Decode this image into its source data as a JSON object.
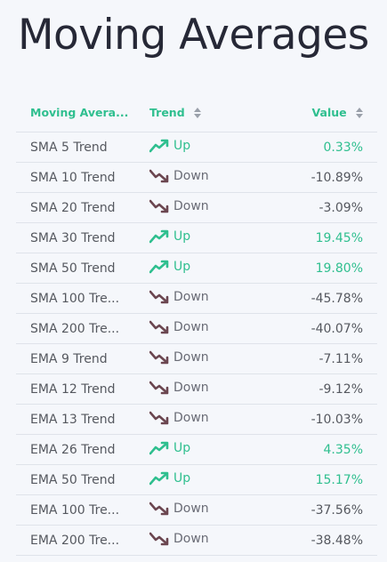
{
  "title": "Moving Averages",
  "header": {
    "col_name": "Moving Avera...",
    "col_trend": "Trend",
    "col_value": "Value"
  },
  "colors": {
    "up": "#2fbf8f",
    "down_icon": "#6b4650",
    "header": "#2fbf8f"
  },
  "icons": {
    "up": "trend-up-arrow",
    "down": "trend-down-arrow",
    "sort": "sort-updown"
  },
  "rows": [
    {
      "name": "SMA 5 Trend",
      "trend": "Up",
      "direction": "up",
      "value": "0.33%"
    },
    {
      "name": "SMA 10 Trend",
      "trend": "Down",
      "direction": "down",
      "value": "-10.89%"
    },
    {
      "name": "SMA 20 Trend",
      "trend": "Down",
      "direction": "down",
      "value": "-3.09%"
    },
    {
      "name": "SMA 30 Trend",
      "trend": "Up",
      "direction": "up",
      "value": "19.45%"
    },
    {
      "name": "SMA 50 Trend",
      "trend": "Up",
      "direction": "up",
      "value": "19.80%"
    },
    {
      "name": "SMA 100 Tre...",
      "trend": "Down",
      "direction": "down",
      "value": "-45.78%"
    },
    {
      "name": "SMA 200 Tre...",
      "trend": "Down",
      "direction": "down",
      "value": "-40.07%"
    },
    {
      "name": "EMA 9 Trend",
      "trend": "Down",
      "direction": "down",
      "value": "-7.11%"
    },
    {
      "name": "EMA 12 Trend",
      "trend": "Down",
      "direction": "down",
      "value": "-9.12%"
    },
    {
      "name": "EMA 13 Trend",
      "trend": "Down",
      "direction": "down",
      "value": "-10.03%"
    },
    {
      "name": "EMA 26 Trend",
      "trend": "Up",
      "direction": "up",
      "value": "4.35%"
    },
    {
      "name": "EMA 50 Trend",
      "trend": "Up",
      "direction": "up",
      "value": "15.17%"
    },
    {
      "name": "EMA 100 Tre...",
      "trend": "Down",
      "direction": "down",
      "value": "-37.56%"
    },
    {
      "name": "EMA 200 Tre...",
      "trend": "Down",
      "direction": "down",
      "value": "-38.48%"
    }
  ]
}
